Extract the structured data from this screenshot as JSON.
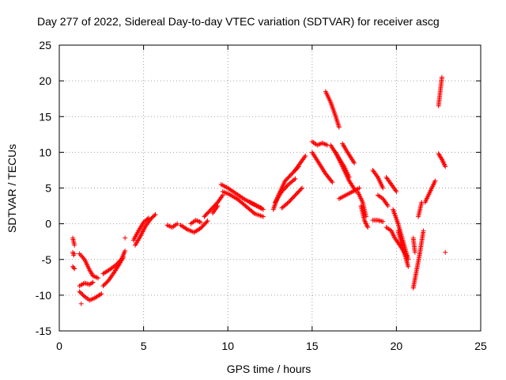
{
  "chart_data": {
    "type": "scatter",
    "title": "Day 277 of 2022, Sidereal Day-to-day VTEC variation (SDTVAR) for receiver ascg",
    "xlabel": "GPS time / hours",
    "ylabel": "SDTVAR / TECUs",
    "xlim": [
      0,
      25
    ],
    "ylim": [
      -15,
      25
    ],
    "xticks": [
      0,
      5,
      10,
      15,
      20,
      25
    ],
    "yticks": [
      -15,
      -10,
      -5,
      0,
      5,
      10,
      15,
      20,
      25
    ],
    "grid": true,
    "marker": "+",
    "color": "#ff0000",
    "series": [
      {
        "name": "s01",
        "x": [
          0.8,
          0.9
        ],
        "y": [
          -2.0,
          -3.0
        ]
      },
      {
        "name": "s02",
        "x": [
          0.8,
          0.85,
          0.9
        ],
        "y": [
          -4.0,
          -4.4,
          -4.2
        ]
      },
      {
        "name": "s03",
        "x": [
          0.8,
          0.9
        ],
        "y": [
          -6.0,
          -6.3
        ]
      },
      {
        "name": "s04",
        "x": [
          1.2,
          1.5,
          1.8,
          2.0,
          2.3
        ],
        "y": [
          -4.2,
          -5.0,
          -6.5,
          -7.3,
          -7.6
        ]
      },
      {
        "name": "s05",
        "x": [
          1.2,
          1.5,
          1.8,
          2.1,
          2.5
        ],
        "y": [
          -9.5,
          -10.2,
          -10.7,
          -10.4,
          -9.8
        ]
      },
      {
        "name": "s06",
        "x": [
          1.2,
          1.5,
          1.8,
          2.0
        ],
        "y": [
          -8.7,
          -8.3,
          -8.5,
          -8.2
        ]
      },
      {
        "name": "s07",
        "x": [
          1.3
        ],
        "y": [
          -11.2
        ]
      },
      {
        "name": "s08",
        "x": [
          2.6,
          3.0,
          3.4,
          3.7,
          3.9
        ],
        "y": [
          -7.0,
          -6.4,
          -5.7,
          -4.9,
          -3.8
        ]
      },
      {
        "name": "s09",
        "x": [
          2.6,
          2.9,
          3.2,
          3.5,
          3.8
        ],
        "y": [
          -8.7,
          -8.0,
          -7.0,
          -5.9,
          -4.7
        ]
      },
      {
        "name": "s10",
        "x": [
          3.9
        ],
        "y": [
          -2.0
        ]
      },
      {
        "name": "s11",
        "x": [
          4.4,
          4.7,
          5.0,
          5.3
        ],
        "y": [
          -2.3,
          -1.0,
          0.2,
          0.8
        ]
      },
      {
        "name": "s12",
        "x": [
          4.5,
          4.8,
          5.1,
          5.4,
          5.7
        ],
        "y": [
          -3.0,
          -1.8,
          -0.4,
          0.6,
          1.3
        ]
      },
      {
        "name": "s13",
        "x": [
          6.4,
          6.7,
          7.0
        ],
        "y": [
          -0.2,
          -0.5,
          0.0
        ]
      },
      {
        "name": "s14",
        "x": [
          7.2,
          7.6,
          8.0,
          8.4,
          8.8
        ],
        "y": [
          -0.2,
          -0.8,
          -1.2,
          -0.6,
          0.4
        ]
      },
      {
        "name": "s15",
        "x": [
          7.8,
          8.1,
          8.4
        ],
        "y": [
          0.0,
          0.5,
          0.2
        ]
      },
      {
        "name": "s16",
        "x": [
          8.6,
          9.0,
          9.4,
          9.7
        ],
        "y": [
          1.0,
          2.0,
          3.0,
          4.0
        ]
      },
      {
        "name": "s17",
        "x": [
          9.1,
          9.4
        ],
        "y": [
          1.5,
          2.5
        ]
      },
      {
        "name": "s18",
        "x": [
          9.6,
          10.0,
          10.5,
          11.0,
          11.5,
          12.0
        ],
        "y": [
          5.5,
          5.0,
          4.2,
          3.4,
          2.8,
          2.2
        ]
      },
      {
        "name": "s19",
        "x": [
          9.7,
          10.1,
          10.6,
          11.1,
          11.6,
          12.1
        ],
        "y": [
          4.5,
          4.1,
          3.4,
          2.4,
          1.4,
          1.0
        ]
      },
      {
        "name": "s20",
        "x": [
          11.3,
          11.7,
          12.1
        ],
        "y": [
          3.0,
          2.5,
          2.0
        ]
      },
      {
        "name": "s21",
        "x": [
          12.7,
          13.0,
          13.4,
          13.8,
          14.2
        ],
        "y": [
          2.0,
          4.0,
          6.0,
          7.0,
          8.0
        ]
      },
      {
        "name": "s22",
        "x": [
          12.8,
          13.2,
          13.6,
          14.0
        ],
        "y": [
          3.0,
          4.5,
          5.5,
          6.3
        ]
      },
      {
        "name": "s23",
        "x": [
          13.2,
          13.6,
          14.0,
          14.4
        ],
        "y": [
          2.2,
          3.0,
          4.0,
          5.0
        ]
      },
      {
        "name": "s24",
        "x": [
          14.0,
          14.3,
          14.6
        ],
        "y": [
          7.5,
          8.5,
          9.5
        ]
      },
      {
        "name": "s25",
        "x": [
          15.0,
          15.4,
          15.8,
          16.2
        ],
        "y": [
          10.0,
          8.5,
          7.0,
          5.8
        ]
      },
      {
        "name": "s26",
        "x": [
          15.0,
          15.3,
          15.6,
          15.9
        ],
        "y": [
          11.5,
          11.0,
          11.3,
          11.0
        ]
      },
      {
        "name": "s27",
        "x": [
          15.8,
          16.1,
          16.4,
          16.6
        ],
        "y": [
          18.5,
          17.0,
          15.0,
          13.5
        ]
      },
      {
        "name": "s28",
        "x": [
          16.1,
          16.5,
          16.9,
          17.2
        ],
        "y": [
          11.0,
          9.5,
          8.0,
          6.5
        ]
      },
      {
        "name": "s29",
        "x": [
          16.4,
          16.8,
          17.2,
          17.6
        ],
        "y": [
          10.0,
          8.0,
          6.0,
          4.5
        ]
      },
      {
        "name": "s30",
        "x": [
          16.8,
          17.1,
          17.5
        ],
        "y": [
          11.2,
          10.0,
          8.5
        ]
      },
      {
        "name": "s31",
        "x": [
          16.6,
          17.0,
          17.4,
          17.8
        ],
        "y": [
          3.5,
          4.0,
          4.5,
          5.0
        ]
      },
      {
        "name": "s32",
        "x": [
          17.7,
          18.0,
          18.2
        ],
        "y": [
          4.5,
          3.0,
          1.0
        ]
      },
      {
        "name": "s33",
        "x": [
          17.9,
          18.1,
          18.3
        ],
        "y": [
          2.5,
          0.5,
          -0.5
        ]
      },
      {
        "name": "s34",
        "x": [
          18.6,
          18.9,
          19.2
        ],
        "y": [
          7.5,
          6.5,
          5.0
        ]
      },
      {
        "name": "s35",
        "x": [
          18.9,
          19.2,
          19.5
        ],
        "y": [
          4.0,
          3.5,
          2.5
        ]
      },
      {
        "name": "s36",
        "x": [
          19.4,
          19.7,
          20.0
        ],
        "y": [
          6.5,
          5.5,
          4.5
        ]
      },
      {
        "name": "s37",
        "x": [
          18.6,
          18.9,
          19.2
        ],
        "y": [
          0.5,
          0.5,
          0.3
        ]
      },
      {
        "name": "s38",
        "x": [
          19.4,
          19.7,
          19.9,
          20.2,
          20.6
        ],
        "y": [
          -0.5,
          -1.0,
          -2.0,
          -3.0,
          -4.5
        ]
      },
      {
        "name": "s39",
        "x": [
          19.8,
          20.1,
          20.4,
          20.7
        ],
        "y": [
          2.0,
          0.0,
          -2.5,
          -5.0
        ]
      },
      {
        "name": "s40",
        "x": [
          20.1,
          20.4,
          20.7
        ],
        "y": [
          -1.0,
          -3.5,
          -6.0
        ]
      },
      {
        "name": "s41",
        "x": [
          21.0,
          21.2,
          21.4,
          21.6
        ],
        "y": [
          -9.0,
          -6.5,
          -4.0,
          -1.0
        ]
      },
      {
        "name": "s42",
        "x": [
          21.0,
          21.1
        ],
        "y": [
          -2.0,
          -4.0
        ]
      },
      {
        "name": "s43",
        "x": [
          21.3,
          21.4,
          21.5
        ],
        "y": [
          1.0,
          2.0,
          3.0
        ]
      },
      {
        "name": "s44",
        "x": [
          21.7,
          22.0,
          22.3
        ],
        "y": [
          3.0,
          4.5,
          6.0
        ]
      },
      {
        "name": "s45",
        "x": [
          22.5,
          22.7,
          22.9
        ],
        "y": [
          9.8,
          9.0,
          8.0
        ]
      },
      {
        "name": "s46",
        "x": [
          22.5,
          22.6,
          22.7
        ],
        "y": [
          16.5,
          18.5,
          20.5
        ]
      },
      {
        "name": "s47",
        "x": [
          22.9
        ],
        "y": [
          -4.0
        ]
      }
    ]
  }
}
